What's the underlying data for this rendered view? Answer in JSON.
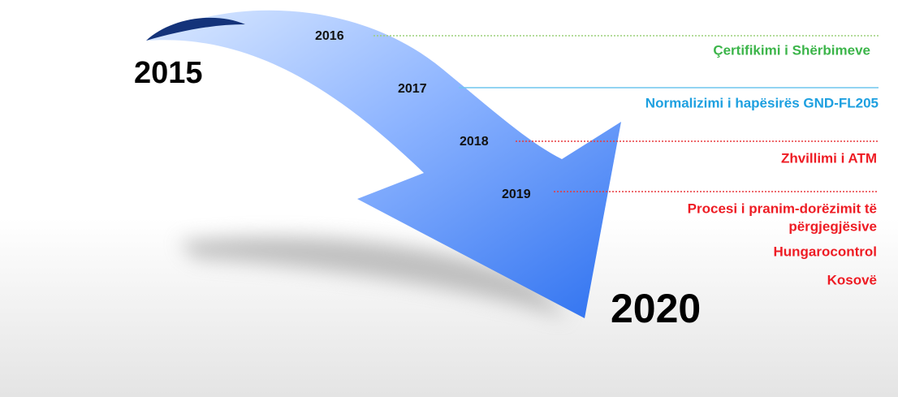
{
  "start_year": "2015",
  "end_year": "2020",
  "milestones": [
    {
      "year": "2016",
      "lines": [
        "Çertifikimi i Shërbimeve"
      ]
    },
    {
      "year": "2017",
      "lines": [
        "Normalizimi i hapësirës GND-FL205"
      ]
    },
    {
      "year": "2018",
      "lines": [
        "Zhvillimi i ATM"
      ]
    },
    {
      "year": "2019",
      "lines": [
        "Procesi i pranim-dorëzimit të",
        "përgjegjësive",
        "Hungarocontrol",
        "Kosovë"
      ]
    }
  ]
}
